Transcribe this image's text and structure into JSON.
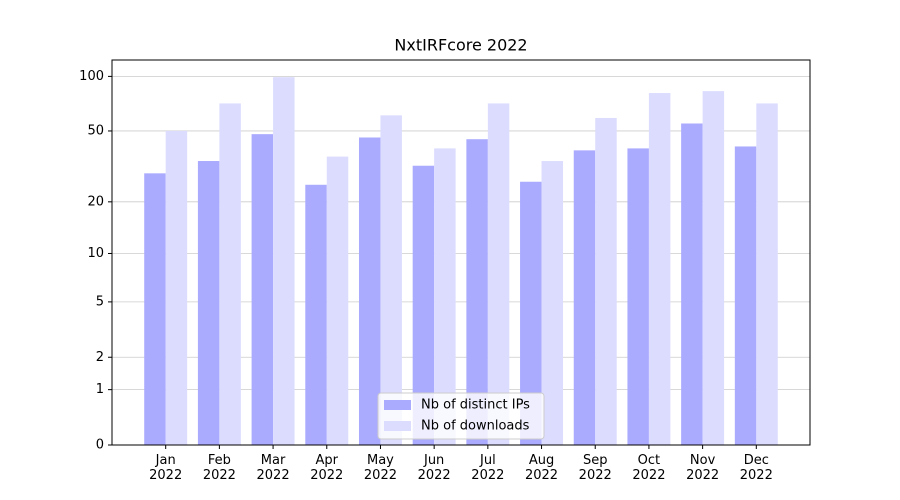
{
  "chart_data": {
    "type": "bar",
    "title": "NxtIRFcore 2022",
    "categories": [
      "Jan\n2022",
      "Feb\n2022",
      "Mar\n2022",
      "Apr\n2022",
      "May\n2022",
      "Jun\n2022",
      "Jul\n2022",
      "Aug\n2022",
      "Sep\n2022",
      "Oct\n2022",
      "Nov\n2022",
      "Dec\n2022"
    ],
    "series": [
      {
        "name": "Nb of distinct IPs",
        "color": "#aaaaff",
        "values": [
          29,
          34,
          48,
          25,
          46,
          32,
          45,
          26,
          39,
          40,
          55,
          41
        ]
      },
      {
        "name": "Nb of downloads",
        "color": "#dcdcff",
        "values": [
          50,
          71,
          99,
          36,
          61,
          40,
          71,
          34,
          59,
          81,
          83,
          71
        ]
      }
    ],
    "yscale": "log1p",
    "ylim": [
      0,
      123
    ],
    "yticks": [
      0,
      1,
      2,
      5,
      10,
      20,
      50,
      100
    ],
    "grid": true,
    "legend": "lower center"
  }
}
